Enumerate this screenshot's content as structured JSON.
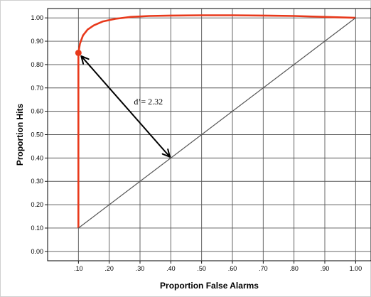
{
  "chart_data": {
    "type": "line",
    "title": "",
    "xlabel": "Proportion False Alarms",
    "ylabel": "Proportion Hits",
    "xlim": [
      0.0,
      1.05
    ],
    "ylim": [
      -0.04,
      1.04
    ],
    "grid": true,
    "x_ticks": [
      ".10",
      ".20",
      ".30",
      ".40",
      ".50",
      ".60",
      ".70",
      ".80",
      ".90",
      "1.00"
    ],
    "x_tick_values": [
      0.1,
      0.2,
      0.3,
      0.4,
      0.5,
      0.6,
      0.7,
      0.8,
      0.9,
      1.0
    ],
    "y_ticks": [
      "0.00",
      "0.10",
      "0.20",
      "0.30",
      "0.40",
      "0.50",
      "0.60",
      "0.70",
      "0.80",
      "0.90",
      "1.00"
    ],
    "y_tick_values": [
      0.0,
      0.1,
      0.2,
      0.3,
      0.4,
      0.5,
      0.6,
      0.7,
      0.8,
      0.9,
      1.0
    ],
    "series": [
      {
        "color": "#e8391b",
        "x": [
          0.1,
          0.1,
          0.105,
          0.115,
          0.13,
          0.15,
          0.18,
          0.22,
          0.27,
          0.33,
          0.4,
          0.5,
          0.6,
          0.7,
          0.8,
          0.9,
          1.0
        ],
        "y": [
          0.1,
          0.85,
          0.89,
          0.925,
          0.95,
          0.968,
          0.985,
          0.996,
          1.004,
          1.008,
          1.01,
          1.011,
          1.011,
          1.01,
          1.008,
          1.004,
          1.0
        ]
      },
      {
        "color": "#555555",
        "x": [
          0.1,
          1.0
        ],
        "y": [
          0.1,
          1.0
        ]
      }
    ],
    "points": [
      {
        "x": 0.1,
        "y": 0.85,
        "color": "#e8391b"
      }
    ],
    "arrow": {
      "from": [
        0.1,
        0.85
      ],
      "to": [
        0.4,
        0.4
      ]
    },
    "annotation": {
      "text": "d’= 2.32",
      "x": 0.28,
      "y": 0.63
    }
  }
}
